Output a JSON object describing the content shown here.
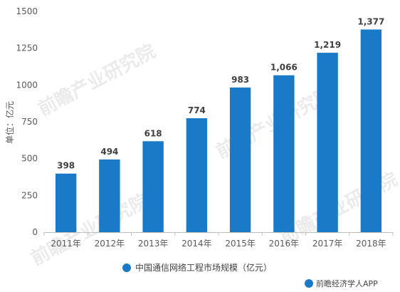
{
  "chart_data": {
    "type": "bar",
    "categories": [
      "2011年",
      "2012年",
      "2013年",
      "2014年",
      "2015年",
      "2016年",
      "2017年",
      "2018年"
    ],
    "values": [
      398,
      494,
      618,
      774,
      983,
      1066,
      1219,
      1377
    ],
    "data_labels": [
      "398",
      "494",
      "618",
      "774",
      "983",
      "1,066",
      "1,219",
      "1,377"
    ],
    "series": [
      {
        "name": "中国通信网络工程市场规模（亿元）",
        "values": [
          398,
          494,
          618,
          774,
          983,
          1066,
          1219,
          1377
        ]
      }
    ],
    "ylabel": "单位：亿元",
    "xlabel": "",
    "ylim": [
      0,
      1500
    ],
    "yticks": [
      "0",
      "250",
      "500",
      "750",
      "1000",
      "1250",
      "1500"
    ],
    "grid": false,
    "legend_position": "bottom",
    "bar_color": "#1a7ac8"
  },
  "watermark": "前瞻产业研究院",
  "source_badge": "前瞻经济学人APP"
}
